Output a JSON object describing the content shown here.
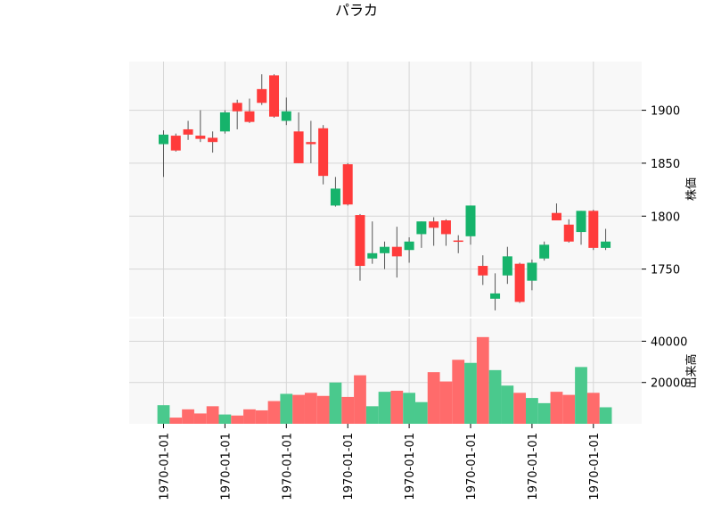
{
  "chart_data": {
    "type": "candlestick",
    "title": "パラカ",
    "colors": {
      "up": "#16b36b",
      "down": "#ff3b3b",
      "wick": "#555555",
      "panel_bg": "#f8f8f8",
      "grid": "#d6d6d6"
    },
    "price_panel": {
      "ylabel": "株価",
      "ylim": [
        1705,
        1946
      ],
      "yticks": [
        1750,
        1800,
        1850,
        1900
      ],
      "grid": true
    },
    "volume_panel": {
      "ylabel": "出来高",
      "ylim": [
        0,
        51000
      ],
      "yticks": [
        20000,
        40000
      ],
      "grid": true
    },
    "x_ticks": {
      "labels": [
        "1970-01-01",
        "1970-01-01",
        "1970-01-01",
        "1970-01-01",
        "1970-01-01",
        "1970-01-01",
        "1970-01-01",
        "1970-01-01"
      ],
      "at_index": [
        0,
        5,
        10,
        15,
        20,
        25,
        30,
        35
      ]
    },
    "candles": [
      {
        "o": 1868,
        "h": 1881,
        "l": 1837,
        "c": 1877,
        "v": 9000
      },
      {
        "o": 1876,
        "h": 1878,
        "l": 1861,
        "c": 1862,
        "v": 3000
      },
      {
        "o": 1882,
        "h": 1890,
        "l": 1872,
        "c": 1877,
        "v": 7000
      },
      {
        "o": 1876,
        "h": 1900,
        "l": 1870,
        "c": 1873,
        "v": 5000
      },
      {
        "o": 1874,
        "h": 1880,
        "l": 1860,
        "c": 1870,
        "v": 8500
      },
      {
        "o": 1880,
        "h": 1900,
        "l": 1878,
        "c": 1898,
        "v": 4500
      },
      {
        "o": 1907,
        "h": 1910,
        "l": 1882,
        "c": 1899,
        "v": 4000
      },
      {
        "o": 1899,
        "h": 1911,
        "l": 1888,
        "c": 1889,
        "v": 7000
      },
      {
        "o": 1920,
        "h": 1934,
        "l": 1905,
        "c": 1907,
        "v": 6500
      },
      {
        "o": 1933,
        "h": 1934,
        "l": 1893,
        "c": 1894,
        "v": 11000
      },
      {
        "o": 1890,
        "h": 1912,
        "l": 1886,
        "c": 1899,
        "v": 14500
      },
      {
        "o": 1880,
        "h": 1898,
        "l": 1850,
        "c": 1850,
        "v": 14000
      },
      {
        "o": 1870,
        "h": 1890,
        "l": 1850,
        "c": 1868,
        "v": 15000
      },
      {
        "o": 1883,
        "h": 1886,
        "l": 1830,
        "c": 1838,
        "v": 13500
      },
      {
        "o": 1810,
        "h": 1837,
        "l": 1809,
        "c": 1826,
        "v": 20000
      },
      {
        "o": 1849,
        "h": 1850,
        "l": 1810,
        "c": 1811,
        "v": 13000
      },
      {
        "o": 1801,
        "h": 1802,
        "l": 1739,
        "c": 1753,
        "v": 23500
      },
      {
        "o": 1760,
        "h": 1795,
        "l": 1755,
        "c": 1765,
        "v": 8500
      },
      {
        "o": 1765,
        "h": 1776,
        "l": 1750,
        "c": 1771,
        "v": 15500
      },
      {
        "o": 1771,
        "h": 1790,
        "l": 1742,
        "c": 1762,
        "v": 16000
      },
      {
        "o": 1768,
        "h": 1780,
        "l": 1756,
        "c": 1776,
        "v": 15000
      },
      {
        "o": 1783,
        "h": 1795,
        "l": 1770,
        "c": 1795,
        "v": 10500
      },
      {
        "o": 1795,
        "h": 1799,
        "l": 1772,
        "c": 1789,
        "v": 25000
      },
      {
        "o": 1796,
        "h": 1797,
        "l": 1772,
        "c": 1783,
        "v": 20500
      },
      {
        "o": 1777,
        "h": 1782,
        "l": 1765,
        "c": 1776,
        "v": 31000
      },
      {
        "o": 1781,
        "h": 1810,
        "l": 1773,
        "c": 1810,
        "v": 29500
      },
      {
        "o": 1753,
        "h": 1763,
        "l": 1735,
        "c": 1744,
        "v": 42000
      },
      {
        "o": 1722,
        "h": 1746,
        "l": 1711,
        "c": 1727,
        "v": 26000
      },
      {
        "o": 1744,
        "h": 1771,
        "l": 1736,
        "c": 1762,
        "v": 18500
      },
      {
        "o": 1755,
        "h": 1756,
        "l": 1718,
        "c": 1719,
        "v": 15000
      },
      {
        "o": 1739,
        "h": 1759,
        "l": 1730,
        "c": 1756,
        "v": 12500
      },
      {
        "o": 1760,
        "h": 1776,
        "l": 1758,
        "c": 1773,
        "v": 10000
      },
      {
        "o": 1803,
        "h": 1812,
        "l": 1796,
        "c": 1796,
        "v": 15500
      },
      {
        "o": 1792,
        "h": 1797,
        "l": 1775,
        "c": 1776,
        "v": 14000
      },
      {
        "o": 1785,
        "h": 1805,
        "l": 1773,
        "c": 1805,
        "v": 27500
      },
      {
        "o": 1805,
        "h": 1806,
        "l": 1768,
        "c": 1770,
        "v": 15000
      },
      {
        "o": 1770,
        "h": 1788,
        "l": 1768,
        "c": 1776,
        "v": 8000
      }
    ]
  }
}
